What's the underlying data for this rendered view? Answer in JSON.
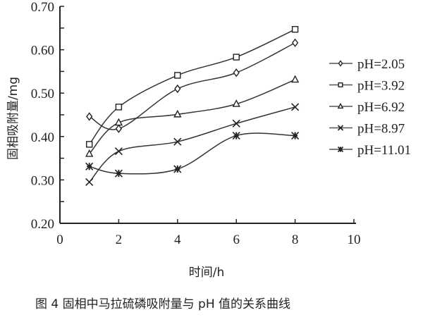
{
  "chart_data": {
    "type": "line",
    "title": "",
    "xlabel": "时间/h",
    "ylabel": "固相吸附量/mg",
    "xlim": [
      0,
      10
    ],
    "ylim": [
      0.2,
      0.7
    ],
    "xticks": [
      "0",
      "2",
      "4",
      "6",
      "8",
      "10"
    ],
    "yticks": [
      "0.20",
      "0.30",
      "0.40",
      "0.50",
      "0.60",
      "0.70"
    ],
    "grid": false,
    "legend_position": "right",
    "smooth": true,
    "x": [
      1,
      2,
      4,
      6,
      8
    ],
    "series": [
      {
        "name": "pH=2.05",
        "marker": "diamond",
        "values": [
          0.446,
          0.418,
          0.51,
          0.547,
          0.616
        ]
      },
      {
        "name": "pH=3.92",
        "marker": "square",
        "values": [
          0.382,
          0.468,
          0.541,
          0.583,
          0.647
        ]
      },
      {
        "name": "pH=6.92",
        "marker": "triangle",
        "values": [
          0.36,
          0.432,
          0.451,
          0.475,
          0.531
        ]
      },
      {
        "name": "pH=8.97",
        "marker": "x",
        "values": [
          0.295,
          0.366,
          0.388,
          0.43,
          0.468
        ]
      },
      {
        "name": "pH=11.01",
        "marker": "asterisk",
        "values": [
          0.331,
          0.315,
          0.325,
          0.402,
          0.402
        ]
      }
    ],
    "caption": "图 4   固相中马拉硫磷吸附量与 pH 值的关系曲线"
  }
}
